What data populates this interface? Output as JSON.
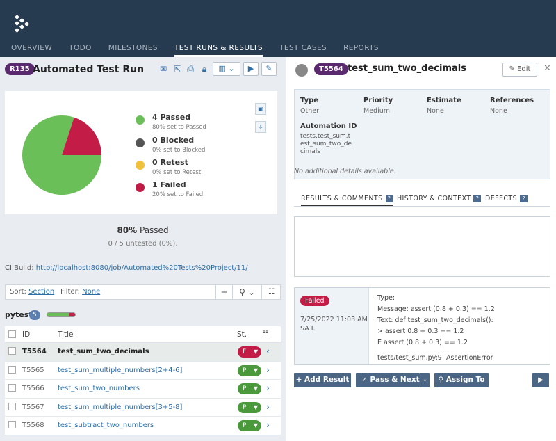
{
  "nav": [
    "OVERVIEW",
    "TODO",
    "MILESTONES",
    "TEST RUNS & RESULTS",
    "TEST CASES",
    "REPORTS"
  ],
  "run": {
    "id": "R135",
    "title": "Automated Test Run"
  },
  "stats": [
    {
      "label": "4 Passed",
      "sub": "80% set to Passed",
      "color": "#6bbf59"
    },
    {
      "label": "0 Blocked",
      "sub": "0% set to Blocked",
      "color": "#555555"
    },
    {
      "label": "0 Retest",
      "sub": "0% set to Retest",
      "color": "#f0c23b"
    },
    {
      "label": "1 Failed",
      "sub": "20% set to Failed",
      "color": "#c31d47"
    }
  ],
  "chart_data": {
    "type": "pie",
    "categories": [
      "Passed",
      "Blocked",
      "Retest",
      "Failed"
    ],
    "values": [
      4,
      0,
      0,
      1
    ],
    "colors": [
      "#6bbf59",
      "#555555",
      "#f0c23b",
      "#c31d47"
    ]
  },
  "summary": {
    "percent": "80%",
    "label": "Passed",
    "untested": "0 / 5 untested (0%)."
  },
  "ci": {
    "label": "CI Build:",
    "url": "http://localhost:8080/job/Automated%20Tests%20Project/11/"
  },
  "filter": {
    "sort_label": "Sort:",
    "sort_value": "Section",
    "filter_label": "Filter:",
    "filter_value": "None"
  },
  "group": {
    "name": "pytest",
    "count": "5",
    "pass_fraction": 0.8
  },
  "table": {
    "headers": {
      "id": "ID",
      "title": "Title",
      "status": "St."
    },
    "rows": [
      {
        "id": "T5564",
        "title": "test_sum_two_decimals",
        "status": "F",
        "color": "#c31d47"
      },
      {
        "id": "T5565",
        "title": "test_sum_multiple_numbers[2+4-6]",
        "status": "P",
        "color": "#4a9a3b"
      },
      {
        "id": "T5566",
        "title": "test_sum_two_numbers",
        "status": "P",
        "color": "#4a9a3b"
      },
      {
        "id": "T5567",
        "title": "test_sum_multiple_numbers[3+5-8]",
        "status": "P",
        "color": "#4a9a3b"
      },
      {
        "id": "T5568",
        "title": "test_subtract_two_numbers",
        "status": "P",
        "color": "#4a9a3b"
      }
    ]
  },
  "detail": {
    "id": "T5564",
    "title": "test_sum_two_decimals",
    "edit_label": "Edit",
    "props": {
      "type_h": "Type",
      "type_v": "Other",
      "priority_h": "Priority",
      "priority_v": "Medium",
      "estimate_h": "Estimate",
      "estimate_v": "None",
      "references_h": "References",
      "references_v": "None",
      "automation_h": "Automation ID",
      "automation_v1": "tests.test_sum.t",
      "automation_v2": "est_sum_two_de",
      "automation_v3": "cimals"
    },
    "no_details": "No additional details available.",
    "tabs": [
      "RESULTS & COMMENTS",
      "HISTORY & CONTEXT",
      "DEFECTS"
    ],
    "result": {
      "status": "Failed",
      "date": "7/25/2022 11:03 AM",
      "user": "SA I.",
      "lines": [
        "Type:",
        "Message: assert (0.8 + 0.3) == 1.2",
        "Text: def test_sum_two_decimals():",
        ">      assert 0.8 + 0.3 == 1.2",
        "E      assert (0.8 + 0.3) == 1.2",
        "tests/test_sum.py:9: AssertionError"
      ]
    },
    "buttons": {
      "add_result": "+ Add Result",
      "pass_next": "✓ Pass & Next",
      "assign": "Assign To"
    }
  }
}
